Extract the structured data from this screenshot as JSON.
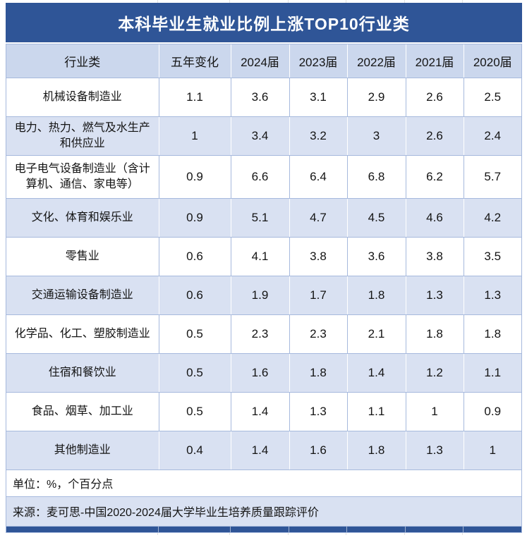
{
  "title": "本科毕业生就业比例上涨TOP10行业类",
  "table": {
    "columns": [
      "行业类",
      "五年变化",
      "2024届",
      "2023届",
      "2022届",
      "2021届",
      "2020届"
    ],
    "rows": [
      {
        "industry": "机械设备制造业",
        "values": [
          "1.1",
          "3.6",
          "3.1",
          "2.9",
          "2.6",
          "2.5"
        ]
      },
      {
        "industry": "电力、热力、燃气及水生产和供应业",
        "values": [
          "1",
          "3.4",
          "3.2",
          "3",
          "2.6",
          "2.4"
        ]
      },
      {
        "industry": "电子电气设备制造业（含计算机、通信、家电等）",
        "values": [
          "0.9",
          "6.6",
          "6.4",
          "6.8",
          "6.2",
          "5.7"
        ]
      },
      {
        "industry": "文化、体育和娱乐业",
        "values": [
          "0.9",
          "5.1",
          "4.7",
          "4.5",
          "4.6",
          "4.2"
        ]
      },
      {
        "industry": "零售业",
        "values": [
          "0.6",
          "4.1",
          "3.8",
          "3.6",
          "3.8",
          "3.5"
        ]
      },
      {
        "industry": "交通运输设备制造业",
        "values": [
          "0.6",
          "1.9",
          "1.7",
          "1.8",
          "1.3",
          "1.3"
        ]
      },
      {
        "industry": "化学品、化工、塑胶制造业",
        "values": [
          "0.5",
          "2.3",
          "2.3",
          "2.1",
          "1.8",
          "1.8"
        ]
      },
      {
        "industry": "住宿和餐饮业",
        "values": [
          "0.5",
          "1.6",
          "1.8",
          "1.4",
          "1.2",
          "1.1"
        ]
      },
      {
        "industry": "食品、烟草、加工业",
        "values": [
          "0.5",
          "1.4",
          "1.3",
          "1.1",
          "1",
          "0.9"
        ]
      },
      {
        "industry": "其他制造业",
        "values": [
          "0.4",
          "1.4",
          "1.6",
          "1.8",
          "1.3",
          "1"
        ]
      }
    ]
  },
  "footer": {
    "unit": "单位：%，个百分点",
    "source": "来源：麦可思-中国2020-2024届大学毕业生培养质量跟踪评价"
  },
  "colors": {
    "title_bar_bg": "#2F5597",
    "title_text": "#FFFFFF",
    "header_bg": "#CBD7ED",
    "band_bg": "#D9E1F2",
    "border_blue": "#A6B9DD",
    "text": "#141414"
  },
  "chart_data": {
    "type": "table",
    "title": "本科毕业生就业比例上涨TOP10行业类",
    "columns": [
      "行业类",
      "五年变化",
      "2024届",
      "2023届",
      "2022届",
      "2021届",
      "2020届"
    ],
    "rows": [
      [
        "机械设备制造业",
        1.1,
        3.6,
        3.1,
        2.9,
        2.6,
        2.5
      ],
      [
        "电力、热力、燃气及水生产和供应业",
        1,
        3.4,
        3.2,
        3,
        2.6,
        2.4
      ],
      [
        "电子电气设备制造业（含计算机、通信、家电等）",
        0.9,
        6.6,
        6.4,
        6.8,
        6.2,
        5.7
      ],
      [
        "文化、体育和娱乐业",
        0.9,
        5.1,
        4.7,
        4.5,
        4.6,
        4.2
      ],
      [
        "零售业",
        0.6,
        4.1,
        3.8,
        3.6,
        3.8,
        3.5
      ],
      [
        "交通运输设备制造业",
        0.6,
        1.9,
        1.7,
        1.8,
        1.3,
        1.3
      ],
      [
        "化学品、化工、塑胶制造业",
        0.5,
        2.3,
        2.3,
        2.1,
        1.8,
        1.8
      ],
      [
        "住宿和餐饮业",
        0.5,
        1.6,
        1.8,
        1.4,
        1.2,
        1.1
      ],
      [
        "食品、烟草、加工业",
        0.5,
        1.4,
        1.3,
        1.1,
        1,
        0.9
      ],
      [
        "其他制造业",
        0.4,
        1.4,
        1.6,
        1.8,
        1.3,
        1
      ]
    ],
    "unit": "%，个百分点",
    "source": "麦可思-中国2020-2024届大学毕业生培养质量跟踪评价"
  }
}
